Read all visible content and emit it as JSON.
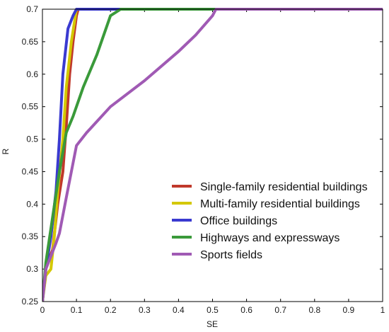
{
  "chart_data": {
    "type": "line",
    "xlabel": "SE",
    "ylabel": "R",
    "xlim": [
      0,
      1
    ],
    "ylim": [
      0.25,
      0.7
    ],
    "x_ticks": [
      0,
      0.1,
      0.2,
      0.3,
      0.4,
      0.5,
      0.6,
      0.7,
      0.8,
      0.9,
      1
    ],
    "y_ticks": [
      0.25,
      0.3,
      0.35,
      0.4,
      0.45,
      0.5,
      0.55,
      0.6,
      0.65,
      0.7
    ],
    "grid": false,
    "legend_position": "bottom-right",
    "series": [
      {
        "name": "Single-family residential buildings",
        "color": "#c0392b",
        "points": [
          [
            0,
            0.25
          ],
          [
            0.01,
            0.3
          ],
          [
            0.03,
            0.33
          ],
          [
            0.045,
            0.4
          ],
          [
            0.06,
            0.45
          ],
          [
            0.07,
            0.52
          ],
          [
            0.08,
            0.6
          ],
          [
            0.09,
            0.65
          ],
          [
            0.1,
            0.69
          ],
          [
            0.105,
            0.7
          ],
          [
            1,
            0.7
          ]
        ]
      },
      {
        "name": "Multi-family residential buildings",
        "color": "#d4c800",
        "points": [
          [
            0,
            0.25
          ],
          [
            0.01,
            0.29
          ],
          [
            0.025,
            0.3
          ],
          [
            0.035,
            0.35
          ],
          [
            0.045,
            0.42
          ],
          [
            0.06,
            0.5
          ],
          [
            0.07,
            0.58
          ],
          [
            0.085,
            0.65
          ],
          [
            0.1,
            0.7
          ],
          [
            1,
            0.7
          ]
        ]
      },
      {
        "name": "Office buildings",
        "color": "#3a3ad0",
        "points": [
          [
            0,
            0.25
          ],
          [
            0.01,
            0.3
          ],
          [
            0.025,
            0.35
          ],
          [
            0.04,
            0.42
          ],
          [
            0.05,
            0.5
          ],
          [
            0.06,
            0.6
          ],
          [
            0.075,
            0.67
          ],
          [
            0.09,
            0.69
          ],
          [
            0.1,
            0.7
          ],
          [
            1,
            0.7
          ]
        ]
      },
      {
        "name": "Highways and expressways",
        "color": "#3a9a3a",
        "points": [
          [
            0,
            0.25
          ],
          [
            0.01,
            0.31
          ],
          [
            0.03,
            0.38
          ],
          [
            0.05,
            0.45
          ],
          [
            0.07,
            0.51
          ],
          [
            0.09,
            0.535
          ],
          [
            0.12,
            0.58
          ],
          [
            0.16,
            0.63
          ],
          [
            0.2,
            0.69
          ],
          [
            0.23,
            0.7
          ],
          [
            1,
            0.7
          ]
        ]
      },
      {
        "name": "Sports fields",
        "color": "#a05ab4",
        "points": [
          [
            0,
            0.25
          ],
          [
            0.01,
            0.3
          ],
          [
            0.04,
            0.34
          ],
          [
            0.05,
            0.355
          ],
          [
            0.07,
            0.41
          ],
          [
            0.1,
            0.49
          ],
          [
            0.13,
            0.51
          ],
          [
            0.2,
            0.55
          ],
          [
            0.3,
            0.59
          ],
          [
            0.4,
            0.635
          ],
          [
            0.45,
            0.66
          ],
          [
            0.5,
            0.69
          ],
          [
            0.51,
            0.7
          ],
          [
            1,
            0.7
          ]
        ]
      }
    ]
  }
}
